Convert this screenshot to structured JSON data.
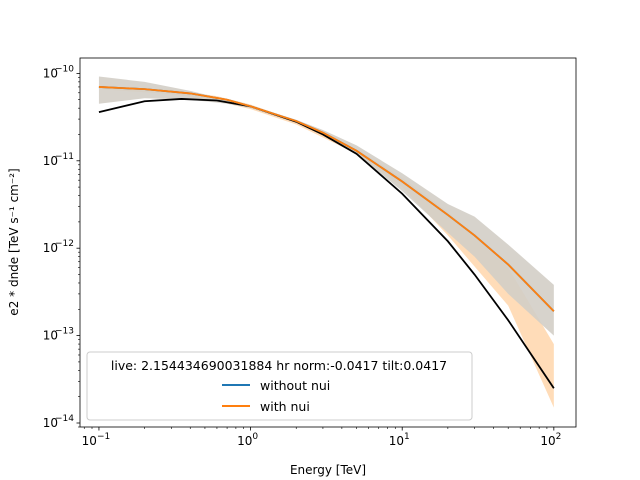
{
  "chart_data": {
    "type": "line",
    "title": "",
    "xlabel": "Energy [TeV]",
    "ylabel": "e2 * dnde [TeV s⁻¹ cm⁻²]",
    "xscale": "log",
    "yscale": "log",
    "xlim": [
      0.075,
      140
    ],
    "ylim": [
      9e-15,
      1.5e-10
    ],
    "x_ticks": [
      {
        "value": 0.1,
        "base": "10",
        "exp": "−1"
      },
      {
        "value": 1,
        "base": "10",
        "exp": "0"
      },
      {
        "value": 10,
        "base": "10",
        "exp": "1"
      },
      {
        "value": 100,
        "base": "10",
        "exp": "2"
      }
    ],
    "y_ticks": [
      {
        "value": 1e-14,
        "base": "10",
        "exp": "−14"
      },
      {
        "value": 1e-13,
        "base": "10",
        "exp": "−13"
      },
      {
        "value": 1e-12,
        "base": "10",
        "exp": "−12"
      },
      {
        "value": 1e-11,
        "base": "10",
        "exp": "−11"
      },
      {
        "value": 1e-10,
        "base": "10",
        "exp": "−10"
      }
    ],
    "reference_curve": {
      "color": "#000000",
      "points": [
        [
          0.1,
          3.6e-11
        ],
        [
          0.2,
          4.8e-11
        ],
        [
          0.35,
          5.1e-11
        ],
        [
          0.6,
          4.9e-11
        ],
        [
          1,
          4.2e-11
        ],
        [
          2,
          2.8e-11
        ],
        [
          3,
          2e-11
        ],
        [
          5,
          1.2e-11
        ],
        [
          10,
          4.2e-12
        ],
        [
          20,
          1.2e-12
        ],
        [
          30,
          5e-13
        ],
        [
          50,
          1.5e-13
        ],
        [
          100,
          2.5e-14
        ]
      ]
    },
    "band": {
      "color": "#d3cec7",
      "points": [
        [
          0.1,
          4.5e-11,
          9.2e-11
        ],
        [
          0.2,
          5.2e-11,
          8e-11
        ],
        [
          0.4,
          5e-11,
          6.3e-11
        ],
        [
          0.7,
          4.5e-11,
          5e-11
        ],
        [
          1,
          4e-11,
          4.3e-11
        ],
        [
          2,
          2.75e-11,
          2.95e-11
        ],
        [
          3,
          2e-11,
          2.25e-11
        ],
        [
          5,
          1.2e-11,
          1.5e-11
        ],
        [
          10,
          4.5e-12,
          7.2e-12
        ],
        [
          20,
          1.5e-12,
          3.2e-12
        ],
        [
          30,
          8e-13,
          2.3e-12
        ],
        [
          50,
          3e-13,
          1.1e-12
        ],
        [
          100,
          1e-13,
          3.8e-13
        ]
      ]
    },
    "orange_band": {
      "color": "#ffdcb8",
      "points": [
        [
          0.1,
          6.6e-11,
          7.2e-11
        ],
        [
          0.3,
          5.8e-11,
          6.5e-11
        ],
        [
          0.6,
          4.8e-11,
          5.5e-11
        ],
        [
          1,
          3.9e-11,
          4.4e-11
        ],
        [
          2,
          2.6e-11,
          2.9e-11
        ],
        [
          5,
          1.2e-11,
          1.35e-11
        ],
        [
          10,
          5e-12,
          6.4e-12
        ],
        [
          20,
          1.4e-12,
          2.6e-12
        ],
        [
          50,
          2.2e-13,
          6e-13
        ],
        [
          100,
          1.5e-14,
          8e-14
        ]
      ]
    },
    "series": [
      {
        "name": "without nui",
        "color": "#1f77b4",
        "points": [
          [
            0.1,
            7e-11
          ],
          [
            0.2,
            6.6e-11
          ],
          [
            0.4,
            5.9e-11
          ],
          [
            0.7,
            5e-11
          ],
          [
            1,
            4.2e-11
          ],
          [
            2,
            2.85e-11
          ],
          [
            3,
            2.1e-11
          ],
          [
            5,
            1.3e-11
          ],
          [
            10,
            5.8e-12
          ],
          [
            20,
            2.4e-12
          ],
          [
            30,
            1.4e-12
          ],
          [
            50,
            6.5e-13
          ],
          [
            100,
            1.9e-13
          ]
        ]
      },
      {
        "name": "with nui",
        "color": "#ff7f0e",
        "points": [
          [
            0.1,
            7e-11
          ],
          [
            0.2,
            6.6e-11
          ],
          [
            0.4,
            5.9e-11
          ],
          [
            0.7,
            5e-11
          ],
          [
            1,
            4.2e-11
          ],
          [
            2,
            2.85e-11
          ],
          [
            3,
            2.1e-11
          ],
          [
            5,
            1.3e-11
          ],
          [
            10,
            5.8e-12
          ],
          [
            20,
            2.4e-12
          ],
          [
            30,
            1.4e-12
          ],
          [
            50,
            6.5e-13
          ],
          [
            100,
            1.9e-13
          ]
        ]
      }
    ],
    "legend": {
      "title": "live: 2.154434690031884 hr norm:-0.0417 tilt:0.0417",
      "placement": "lower-left"
    }
  }
}
